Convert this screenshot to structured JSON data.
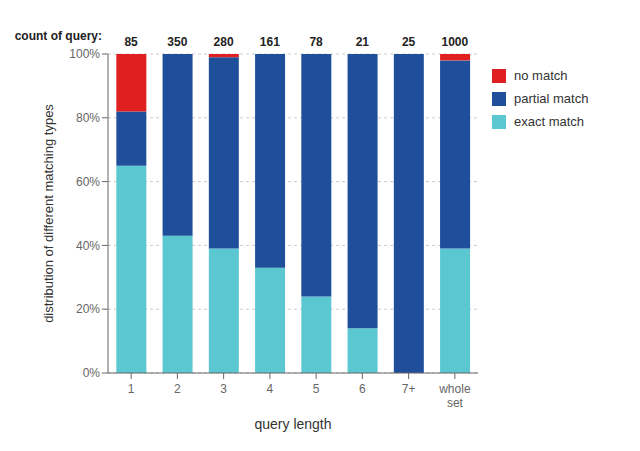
{
  "chart_data": {
    "type": "bar",
    "stacked": true,
    "title": "count of query:",
    "counts": [
      85,
      350,
      280,
      161,
      78,
      21,
      25,
      1000
    ],
    "categories": [
      "1",
      "2",
      "3",
      "4",
      "5",
      "6",
      "7+",
      "whole\nset"
    ],
    "series": [
      {
        "name": "exact match",
        "color": "#5BC8D1",
        "values": [
          65,
          43,
          39,
          33,
          24,
          14,
          0,
          39
        ]
      },
      {
        "name": "partial match",
        "color": "#1F4E9B",
        "values": [
          17,
          57,
          60,
          67,
          76,
          86,
          100,
          59
        ]
      },
      {
        "name": "no match",
        "color": "#E02020",
        "values": [
          18,
          0,
          1,
          0,
          0,
          0,
          0,
          2
        ]
      }
    ],
    "xlabel": "query length",
    "ylabel": "distribution of different matching types",
    "ylim": [
      0,
      100
    ],
    "yticks": [
      {
        "value": 0,
        "label": "0%"
      },
      {
        "value": 20,
        "label": "20%"
      },
      {
        "value": 40,
        "label": "40%"
      },
      {
        "value": 60,
        "label": "60%"
      },
      {
        "value": 80,
        "label": "80%"
      },
      {
        "value": 100,
        "label": "100%"
      }
    ],
    "grid": true,
    "legend": "right"
  }
}
